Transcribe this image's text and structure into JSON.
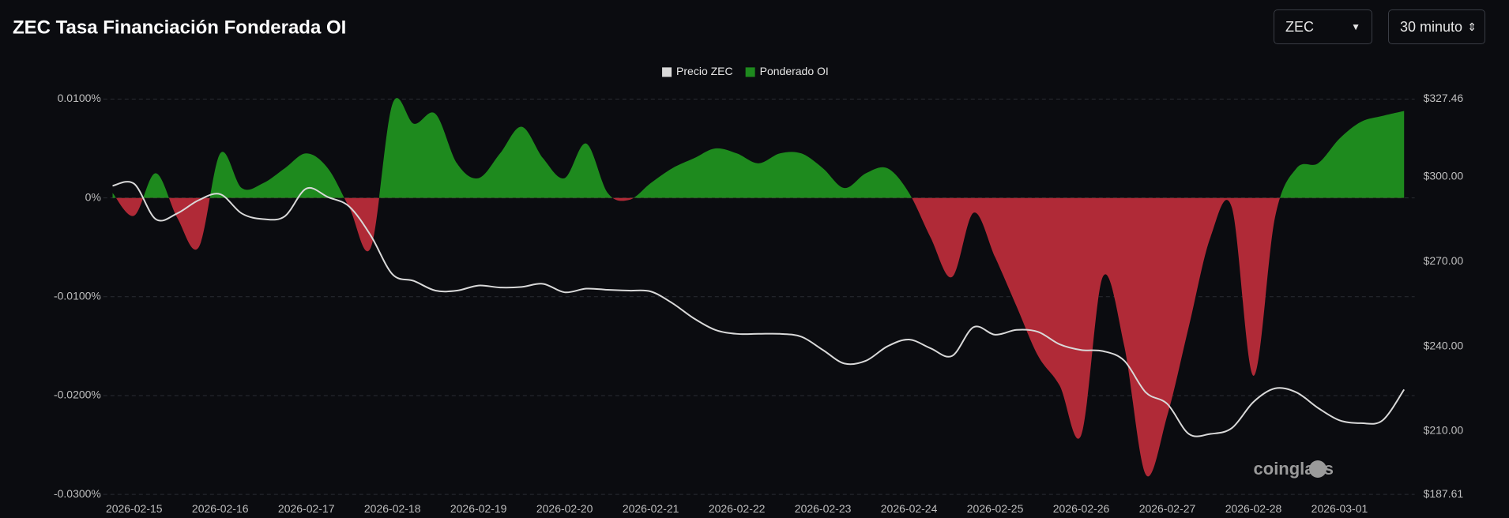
{
  "chart_data": {
    "type": "area-line",
    "title": "ZEC Tasa Financiación Fonderada OI",
    "controls": {
      "symbol": "ZEC",
      "interval": "30 minuto"
    },
    "watermark": "coinglass",
    "legend": "top",
    "x": [
      "2026-02-14 18:00",
      "2026-02-15 00:00",
      "2026-02-15 06:00",
      "2026-02-15 12:00",
      "2026-02-15 18:00",
      "2026-02-16 00:00",
      "2026-02-16 06:00",
      "2026-02-16 12:00",
      "2026-02-16 18:00",
      "2026-02-17 00:00",
      "2026-02-17 06:00",
      "2026-02-17 12:00",
      "2026-02-17 18:00",
      "2026-02-18 00:00",
      "2026-02-18 06:00",
      "2026-02-18 12:00",
      "2026-02-18 18:00",
      "2026-02-19 00:00",
      "2026-02-19 06:00",
      "2026-02-19 12:00",
      "2026-02-19 18:00",
      "2026-02-20 00:00",
      "2026-02-20 06:00",
      "2026-02-20 12:00",
      "2026-02-20 18:00",
      "2026-02-21 00:00",
      "2026-02-21 06:00",
      "2026-02-21 12:00",
      "2026-02-21 18:00",
      "2026-02-22 00:00",
      "2026-02-22 06:00",
      "2026-02-22 12:00",
      "2026-02-22 18:00",
      "2026-02-23 00:00",
      "2026-02-23 06:00",
      "2026-02-23 12:00",
      "2026-02-23 18:00",
      "2026-02-24 00:00",
      "2026-02-24 06:00",
      "2026-02-24 12:00",
      "2026-02-24 18:00",
      "2026-02-25 00:00",
      "2026-02-25 06:00",
      "2026-02-25 12:00",
      "2026-02-25 18:00",
      "2026-02-26 00:00",
      "2026-02-26 06:00",
      "2026-02-26 12:00",
      "2026-02-26 18:00",
      "2026-02-27 00:00",
      "2026-02-27 06:00",
      "2026-02-27 12:00",
      "2026-02-27 18:00",
      "2026-02-28 00:00",
      "2026-02-28 06:00",
      "2026-02-28 12:00",
      "2026-02-28 18:00",
      "2026-03-01 00:00",
      "2026-03-01 06:00",
      "2026-03-01 12:00",
      "2026-03-01 18:00"
    ],
    "xlim": [
      "2026-02-14 18:00",
      "2026-03-01 18:00"
    ],
    "xticks": [
      "2026-02-15",
      "2026-02-16",
      "2026-02-17",
      "2026-02-18",
      "2026-02-19",
      "2026-02-20",
      "2026-02-21",
      "2026-02-22",
      "2026-02-23",
      "2026-02-24",
      "2026-02-25",
      "2026-02-26",
      "2026-02-27",
      "2026-02-28",
      "2026-03-01"
    ],
    "series": [
      {
        "name": "Precio ZEC",
        "color": "#d9d9d9",
        "axis": "y2",
        "values": [
          296.8,
          297.5,
          285,
          287,
          291.7,
          293.8,
          287,
          285,
          286,
          295.8,
          292.8,
          289.4,
          279.1,
          265.5,
          263.1,
          259.7,
          259.7,
          261.5,
          260.8,
          261,
          262.1,
          259.1,
          260.4,
          260,
          259.7,
          259.4,
          255.3,
          249.9,
          245.8,
          244.4,
          244.4,
          244.4,
          243.4,
          238.7,
          233.9,
          234.9,
          240,
          242.4,
          239.3,
          236.6,
          246.8,
          244.1,
          245.8,
          245.1,
          240.7,
          238.7,
          238.3,
          234.9,
          223.7,
          219.6,
          209,
          209,
          211.1,
          220.3,
          225.1,
          223.7,
          218.2,
          213.8,
          212.8,
          213.8,
          224.7
        ]
      },
      {
        "name": "Ponderado OI",
        "color": "#1e8a1e",
        "negative_color": "#b02a37",
        "values": [
          0.0005,
          -0.0018,
          0.0025,
          -0.002,
          -0.005,
          0.0045,
          0.001,
          0.0015,
          0.003,
          0.0045,
          0.003,
          -0.001,
          -0.005,
          0.0095,
          0.0075,
          0.0085,
          0.0035,
          0.002,
          0.0045,
          0.0072,
          0.004,
          0.002,
          0.0055,
          0.0005,
          -0.0002,
          0.0015,
          0.003,
          0.004,
          0.005,
          0.0045,
          0.0035,
          0.0045,
          0.0045,
          0.003,
          0.001,
          0.0025,
          0.003,
          0.0005,
          -0.004,
          -0.008,
          -0.0015,
          -0.006,
          -0.011,
          -0.016,
          -0.019,
          -0.024,
          -0.008,
          -0.015,
          -0.028,
          -0.022,
          -0.013,
          -0.004,
          -0.001,
          -0.018,
          -0.002,
          0.003,
          0.0035,
          0.006,
          0.0077,
          0.0083,
          0.0088
        ]
      }
    ],
    "ylim": [
      -0.03,
      0.01
    ],
    "yticks": [
      {
        "value": 0.01,
        "label": "0.0100%"
      },
      {
        "value": 0,
        "label": "0%"
      },
      {
        "value": -0.01,
        "label": "-0.0100%"
      },
      {
        "value": -0.02,
        "label": "-0.0200%"
      },
      {
        "value": -0.03,
        "label": "-0.0300%"
      }
    ],
    "y2lim": [
      187.61,
      327.46
    ],
    "y2ticks": [
      {
        "value": 327.46,
        "label": "$327.46"
      },
      {
        "value": 300,
        "label": "$300.00"
      },
      {
        "value": 270,
        "label": "$270.00"
      },
      {
        "value": 240,
        "label": "$240.00"
      },
      {
        "value": 210,
        "label": "$210.00"
      },
      {
        "value": 187.61,
        "label": "$187.61"
      }
    ],
    "grid": true
  }
}
